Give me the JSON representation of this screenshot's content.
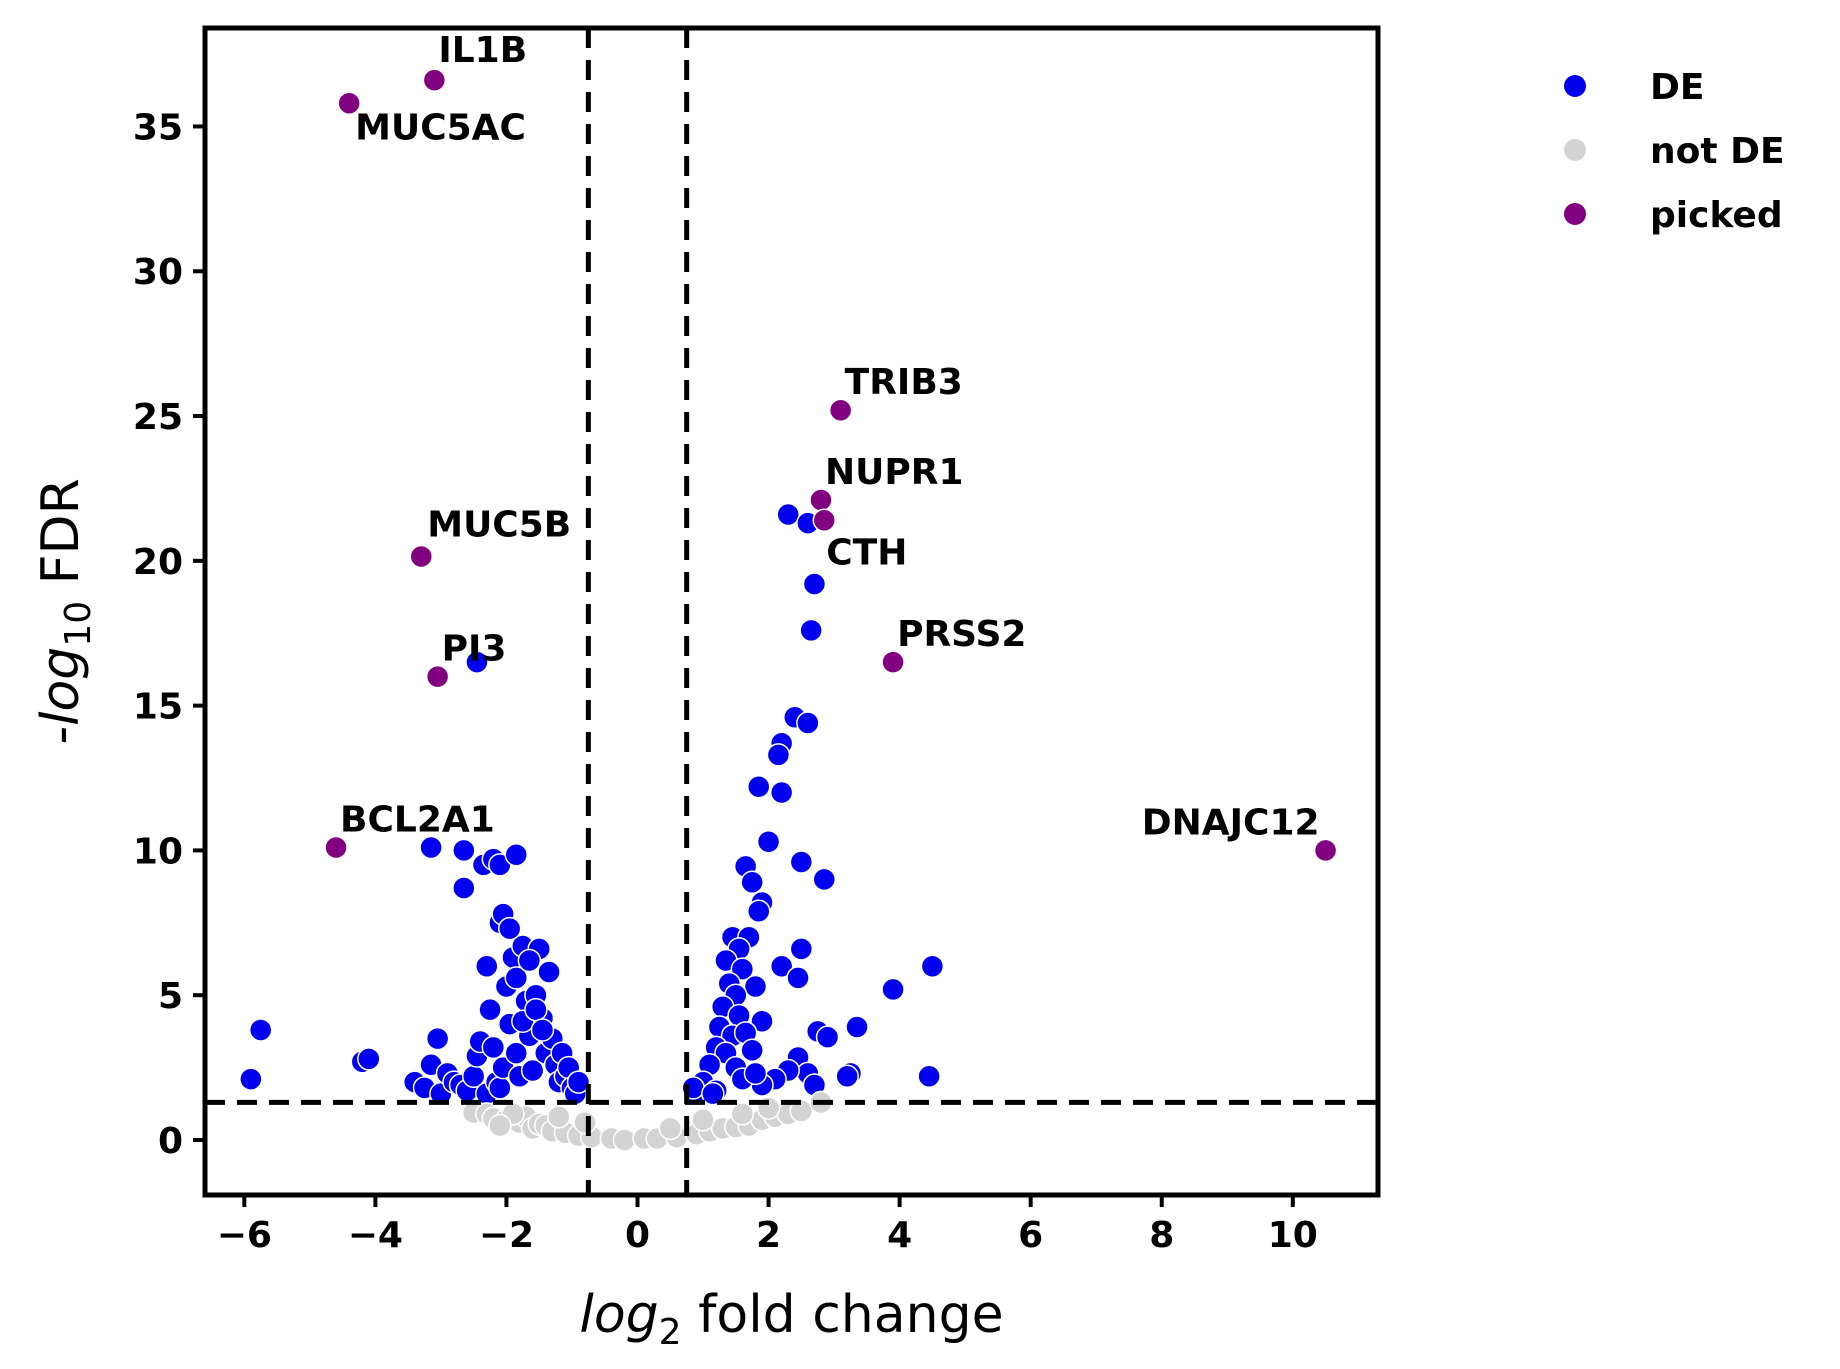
{
  "chart_data": {
    "type": "scatter",
    "title": "",
    "xlabel_main": "log",
    "xlabel_sub": "2",
    "xlabel_rest": " fold change",
    "ylabel_prefix": "-",
    "ylabel_main": "log",
    "ylabel_sub": "10",
    "ylabel_rest": " FDR",
    "xlim": [
      -6.6,
      11.3
    ],
    "ylim": [
      -1.9,
      38.4
    ],
    "xticks": [
      -6,
      -4,
      -2,
      0,
      2,
      4,
      6,
      8,
      10
    ],
    "xtick_labels": [
      "−6",
      "−4",
      "−2",
      "0",
      "2",
      "4",
      "6",
      "8",
      "10"
    ],
    "yticks": [
      0,
      5,
      10,
      15,
      20,
      25,
      30,
      35
    ],
    "ytick_labels": [
      "0",
      "5",
      "10",
      "15",
      "20",
      "25",
      "30",
      "35"
    ],
    "grid": false,
    "legend_position": "outside-top-right",
    "thresholds": {
      "log2fc": [
        -0.75,
        0.75
      ],
      "neg_log10_fdr": 1.3
    },
    "colors": {
      "DE": "#0000ee",
      "not DE": "#d3d3d3",
      "picked": "#800080"
    },
    "legend": [
      {
        "name": "DE",
        "color": "#0000ee"
      },
      {
        "name": "not DE",
        "color": "#d3d3d3"
      },
      {
        "name": "picked",
        "color": "#800080"
      }
    ],
    "series": [
      {
        "name": "DE",
        "points": [
          [
            -5.9,
            2.1
          ],
          [
            -5.75,
            3.8
          ],
          [
            -4.2,
            2.7
          ],
          [
            -4.1,
            2.8
          ],
          [
            -3.4,
            2.0
          ],
          [
            -3.25,
            1.8
          ],
          [
            -3.15,
            2.6
          ],
          [
            -3.05,
            3.5
          ],
          [
            -3.0,
            1.6
          ],
          [
            -2.9,
            2.3
          ],
          [
            -2.8,
            2.0
          ],
          [
            -2.7,
            1.9
          ],
          [
            -2.6,
            1.7
          ],
          [
            -2.5,
            2.2
          ],
          [
            -2.45,
            2.9
          ],
          [
            -2.4,
            3.4
          ],
          [
            -2.3,
            1.6
          ],
          [
            -2.25,
            4.5
          ],
          [
            -2.2,
            3.2
          ],
          [
            -2.15,
            2.0
          ],
          [
            -2.1,
            1.8
          ],
          [
            -2.05,
            2.5
          ],
          [
            -2.0,
            5.3
          ],
          [
            -1.95,
            4.0
          ],
          [
            -1.9,
            6.3
          ],
          [
            -1.85,
            3.0
          ],
          [
            -1.8,
            2.2
          ],
          [
            -1.75,
            6.7
          ],
          [
            -1.7,
            4.8
          ],
          [
            -1.65,
            3.6
          ],
          [
            -1.6,
            2.4
          ],
          [
            -1.55,
            5.0
          ],
          [
            -1.5,
            6.6
          ],
          [
            -1.45,
            4.2
          ],
          [
            -1.4,
            3.0
          ],
          [
            -1.35,
            5.8
          ],
          [
            -1.3,
            3.5
          ],
          [
            -1.25,
            2.6
          ],
          [
            -1.2,
            2.0
          ],
          [
            -1.15,
            3.0
          ],
          [
            -1.1,
            2.2
          ],
          [
            -1.05,
            2.5
          ],
          [
            -1.0,
            1.8
          ],
          [
            -0.95,
            1.6
          ],
          [
            -0.9,
            2.0
          ],
          [
            -2.3,
            6.0
          ],
          [
            -2.1,
            7.5
          ],
          [
            -2.05,
            7.8
          ],
          [
            -1.95,
            7.3
          ],
          [
            -1.85,
            5.6
          ],
          [
            -1.75,
            4.1
          ],
          [
            -1.65,
            6.2
          ],
          [
            -1.55,
            4.5
          ],
          [
            -1.45,
            3.8
          ],
          [
            -3.15,
            10.1
          ],
          [
            -2.65,
            10.0
          ],
          [
            -2.65,
            8.7
          ],
          [
            -2.35,
            9.5
          ],
          [
            -2.2,
            9.7
          ],
          [
            -2.1,
            9.5
          ],
          [
            -1.85,
            9.85
          ],
          [
            -2.45,
            16.5
          ],
          [
            2.3,
            21.6
          ],
          [
            2.6,
            21.3
          ],
          [
            2.7,
            19.2
          ],
          [
            2.65,
            17.6
          ],
          [
            2.4,
            14.6
          ],
          [
            2.6,
            14.4
          ],
          [
            2.2,
            13.7
          ],
          [
            2.15,
            13.3
          ],
          [
            1.85,
            12.2
          ],
          [
            2.2,
            12.0
          ],
          [
            2.0,
            10.3
          ],
          [
            2.5,
            9.6
          ],
          [
            2.85,
            9.0
          ],
          [
            1.65,
            9.45
          ],
          [
            1.75,
            8.9
          ],
          [
            1.9,
            8.2
          ],
          [
            1.85,
            7.9
          ],
          [
            1.45,
            7.0
          ],
          [
            1.7,
            7.0
          ],
          [
            1.55,
            6.6
          ],
          [
            1.35,
            6.2
          ],
          [
            1.6,
            5.9
          ],
          [
            1.4,
            5.4
          ],
          [
            1.8,
            5.3
          ],
          [
            2.2,
            6.0
          ],
          [
            2.5,
            6.6
          ],
          [
            2.45,
            5.6
          ],
          [
            1.5,
            5.0
          ],
          [
            1.3,
            4.6
          ],
          [
            1.9,
            4.1
          ],
          [
            1.55,
            4.3
          ],
          [
            1.25,
            3.9
          ],
          [
            1.45,
            3.6
          ],
          [
            1.65,
            3.7
          ],
          [
            1.2,
            3.2
          ],
          [
            1.35,
            3.0
          ],
          [
            1.75,
            3.1
          ],
          [
            1.1,
            2.6
          ],
          [
            1.5,
            2.5
          ],
          [
            2.45,
            2.85
          ],
          [
            2.6,
            2.3
          ],
          [
            2.3,
            2.4
          ],
          [
            2.1,
            2.1
          ],
          [
            1.9,
            1.9
          ],
          [
            1.0,
            2.0
          ],
          [
            1.2,
            1.7
          ],
          [
            0.9,
            1.6
          ],
          [
            0.85,
            1.8
          ],
          [
            1.15,
            1.6
          ],
          [
            1.6,
            2.1
          ],
          [
            1.8,
            2.3
          ],
          [
            2.75,
            3.75
          ],
          [
            2.9,
            3.55
          ],
          [
            3.35,
            3.9
          ],
          [
            3.25,
            2.3
          ],
          [
            3.2,
            2.2
          ],
          [
            2.7,
            1.9
          ],
          [
            3.9,
            5.2
          ],
          [
            4.5,
            6.0
          ],
          [
            4.45,
            2.2
          ]
        ]
      },
      {
        "name": "not DE",
        "points": [
          [
            -2.5,
            0.95
          ],
          [
            -2.3,
            0.9
          ],
          [
            -2.2,
            0.75
          ],
          [
            -2.0,
            0.7
          ],
          [
            -1.8,
            0.6
          ],
          [
            -1.7,
            0.8
          ],
          [
            -1.6,
            0.4
          ],
          [
            -1.5,
            0.55
          ],
          [
            -1.4,
            0.5
          ],
          [
            -1.3,
            0.3
          ],
          [
            -1.1,
            0.25
          ],
          [
            -0.9,
            0.15
          ],
          [
            -0.7,
            0.1
          ],
          [
            -0.4,
            0.05
          ],
          [
            -0.2,
            0.0
          ],
          [
            0.1,
            0.05
          ],
          [
            0.3,
            0.05
          ],
          [
            0.6,
            0.1
          ],
          [
            0.9,
            0.2
          ],
          [
            1.1,
            0.3
          ],
          [
            1.3,
            0.4
          ],
          [
            1.5,
            0.45
          ],
          [
            1.7,
            0.5
          ],
          [
            1.9,
            0.7
          ],
          [
            2.1,
            0.8
          ],
          [
            2.3,
            0.9
          ],
          [
            2.5,
            1.0
          ],
          [
            2.8,
            1.3
          ],
          [
            -1.9,
            0.9
          ],
          [
            -1.2,
            0.8
          ],
          [
            -0.8,
            0.6
          ],
          [
            1.0,
            0.7
          ],
          [
            1.6,
            0.9
          ],
          [
            2.0,
            1.1
          ],
          [
            -2.1,
            0.5
          ],
          [
            0.5,
            0.4
          ]
        ]
      },
      {
        "name": "picked",
        "points": [
          {
            "x": -3.1,
            "y": 36.6,
            "label": "IL1B"
          },
          {
            "x": -4.4,
            "y": 35.8,
            "label": "MUC5AC"
          },
          {
            "x": -3.3,
            "y": 20.15,
            "label": "MUC5B"
          },
          {
            "x": -3.05,
            "y": 16.0,
            "label": "PI3"
          },
          {
            "x": -4.6,
            "y": 10.1,
            "label": "BCL2A1"
          },
          {
            "x": 3.1,
            "y": 25.2,
            "label": "TRIB3"
          },
          {
            "x": 2.8,
            "y": 22.1,
            "label": "NUPR1"
          },
          {
            "x": 2.85,
            "y": 21.4,
            "label": "CTH"
          },
          {
            "x": 3.9,
            "y": 16.5,
            "label": "PRSS2"
          },
          {
            "x": 10.5,
            "y": 10.0,
            "label": "DNAJC12"
          }
        ]
      }
    ]
  }
}
